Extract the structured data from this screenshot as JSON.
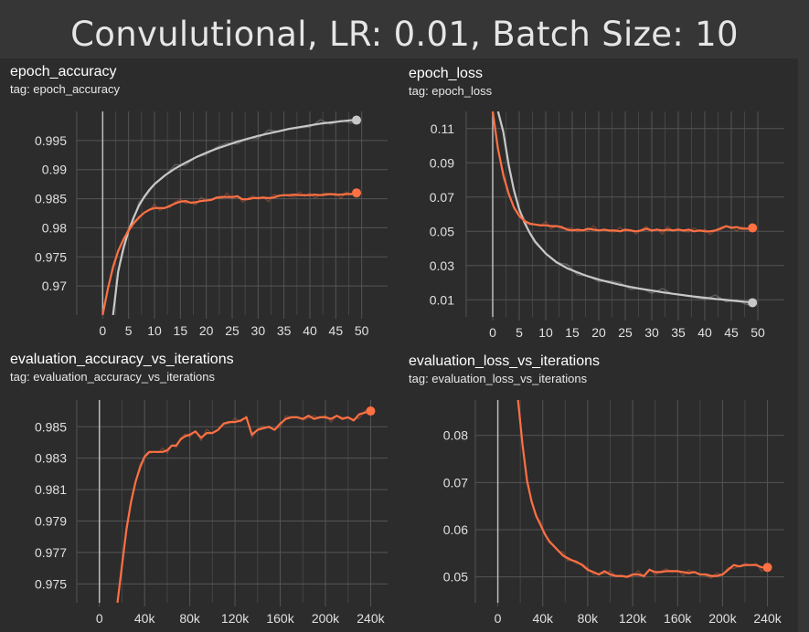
{
  "title": "Convulutional, LR: 0.01, Batch Size: 10",
  "colors": {
    "background": "#2c2c2c",
    "grid": "#555555",
    "zero_line": "#bdbdbd",
    "orange": "#ff7043",
    "gray": "#c8c8c8"
  },
  "panels": [
    {
      "name": "epoch_accuracy",
      "tag": "tag: epoch_accuracy"
    },
    {
      "name": "epoch_loss",
      "tag": "tag: epoch_loss"
    },
    {
      "name": "evaluation_accuracy_vs_iterations",
      "tag": "tag: evaluation_accuracy_vs_iterations"
    },
    {
      "name": "evaluation_loss_vs_iterations",
      "tag": "tag: evaluation_loss_vs_iterations"
    }
  ],
  "chart_data": [
    {
      "type": "line",
      "title": "epoch_accuracy",
      "xlim": [
        -5,
        55
      ],
      "ylim": [
        0.965,
        1.0
      ],
      "xticks": [
        0,
        5,
        10,
        15,
        20,
        25,
        30,
        35,
        40,
        45,
        50
      ],
      "xtick_labels": [
        "0",
        "5",
        "10",
        "15",
        "20",
        "25",
        "30",
        "35",
        "40",
        "45",
        "50"
      ],
      "yticks": [
        0.97,
        0.975,
        0.98,
        0.985,
        0.99,
        0.995
      ],
      "ytick_labels": [
        "0.97",
        "0.975",
        "0.98",
        "0.985",
        "0.99",
        "0.995"
      ],
      "grid": true,
      "series": [
        {
          "color": "#c8c8c8",
          "x": [
            2,
            3,
            4,
            5,
            6,
            7,
            8,
            9,
            10,
            12,
            14,
            16,
            18,
            20,
            22,
            24,
            26,
            28,
            30,
            32,
            34,
            36,
            38,
            40,
            42,
            44,
            46,
            48,
            49
          ],
          "y": [
            0.965,
            0.9725,
            0.9765,
            0.9795,
            0.9818,
            0.9838,
            0.9853,
            0.9865,
            0.9875,
            0.989,
            0.9902,
            0.9912,
            0.9921,
            0.9929,
            0.9936,
            0.9942,
            0.9948,
            0.9953,
            0.9958,
            0.9962,
            0.9966,
            0.997,
            0.9973,
            0.9976,
            0.9979,
            0.9981,
            0.9983,
            0.9985,
            0.9985
          ]
        },
        {
          "color": "#ff7043",
          "x": [
            0,
            1,
            2,
            3,
            4,
            5,
            6,
            7,
            8,
            9,
            10,
            11,
            12,
            13,
            14,
            15,
            16,
            17,
            18,
            19,
            20,
            21,
            22,
            23,
            24,
            25,
            26,
            27,
            28,
            29,
            30,
            31,
            32,
            33,
            34,
            35,
            36,
            37,
            38,
            39,
            40,
            41,
            42,
            43,
            44,
            45,
            46,
            47,
            48,
            49
          ],
          "y": [
            0.965,
            0.9695,
            0.9733,
            0.976,
            0.978,
            0.9795,
            0.9808,
            0.9818,
            0.9826,
            0.9831,
            0.9834,
            0.9834,
            0.9834,
            0.9838,
            0.9842,
            0.9845,
            0.9846,
            0.9843,
            0.9844,
            0.9846,
            0.9847,
            0.9848,
            0.9852,
            0.9853,
            0.9853,
            0.9853,
            0.9854,
            0.9849,
            0.9849,
            0.9851,
            0.9851,
            0.9852,
            0.9851,
            0.9852,
            0.9855,
            0.9856,
            0.9856,
            0.9857,
            0.9856,
            0.9856,
            0.9856,
            0.9857,
            0.9856,
            0.9857,
            0.9858,
            0.9857,
            0.9857,
            0.9858,
            0.9858,
            0.986
          ]
        }
      ]
    },
    {
      "type": "line",
      "title": "epoch_loss",
      "xlim": [
        -5,
        55
      ],
      "ylim": [
        0.0,
        0.12
      ],
      "xticks": [
        0,
        5,
        10,
        15,
        20,
        25,
        30,
        35,
        40,
        45,
        50
      ],
      "xtick_labels": [
        "0",
        "5",
        "10",
        "15",
        "20",
        "25",
        "30",
        "35",
        "40",
        "45",
        "50"
      ],
      "yticks": [
        0.01,
        0.03,
        0.05,
        0.07,
        0.09,
        0.11
      ],
      "ytick_labels": [
        "0.01",
        "0.03",
        "0.05",
        "0.07",
        "0.09",
        "0.11"
      ],
      "grid": true,
      "series": [
        {
          "color": "#c8c8c8",
          "x": [
            1,
            2,
            3,
            4,
            5,
            6,
            7,
            8,
            10,
            12,
            14,
            16,
            18,
            20,
            22,
            24,
            26,
            28,
            30,
            32,
            34,
            36,
            38,
            40,
            42,
            44,
            46,
            48,
            49
          ],
          "y": [
            0.12,
            0.108,
            0.089,
            0.074,
            0.063,
            0.055,
            0.049,
            0.044,
            0.037,
            0.032,
            0.0285,
            0.026,
            0.0237,
            0.0218,
            0.0202,
            0.0188,
            0.0175,
            0.0164,
            0.0154,
            0.0144,
            0.0135,
            0.0127,
            0.0119,
            0.0112,
            0.0105,
            0.0099,
            0.0093,
            0.0087,
            0.0083
          ]
        },
        {
          "color": "#ff7043",
          "x": [
            0,
            1,
            2,
            3,
            4,
            5,
            6,
            7,
            8,
            9,
            10,
            11,
            12,
            13,
            14,
            15,
            16,
            17,
            18,
            19,
            20,
            21,
            22,
            23,
            24,
            25,
            26,
            27,
            28,
            29,
            30,
            31,
            32,
            33,
            34,
            35,
            36,
            37,
            38,
            39,
            40,
            41,
            42,
            43,
            44,
            45,
            46,
            47,
            48,
            49
          ],
          "y": [
            0.12,
            0.098,
            0.083,
            0.072,
            0.064,
            0.059,
            0.056,
            0.0545,
            0.054,
            0.0535,
            0.0535,
            0.053,
            0.053,
            0.0525,
            0.051,
            0.0505,
            0.051,
            0.0505,
            0.0515,
            0.051,
            0.0505,
            0.051,
            0.0505,
            0.0505,
            0.05,
            0.051,
            0.0505,
            0.05,
            0.0505,
            0.0515,
            0.0505,
            0.051,
            0.0505,
            0.051,
            0.0505,
            0.051,
            0.0505,
            0.051,
            0.05,
            0.0505,
            0.05,
            0.05,
            0.0505,
            0.0515,
            0.053,
            0.052,
            0.0525,
            0.0515,
            0.0515,
            0.052
          ]
        }
      ]
    },
    {
      "type": "line",
      "title": "evaluation_accuracy_vs_iterations",
      "xlim": [
        -20000,
        255000
      ],
      "ylim": [
        0.9738,
        0.9867
      ],
      "xticks": [
        0,
        40000,
        80000,
        120000,
        160000,
        200000,
        240000
      ],
      "xtick_labels": [
        "0",
        "40k",
        "80k",
        "120k",
        "160k",
        "200k",
        "240k"
      ],
      "yticks": [
        0.975,
        0.977,
        0.979,
        0.981,
        0.983,
        0.985
      ],
      "ytick_labels": [
        "0.975",
        "0.977",
        "0.979",
        "0.981",
        "0.983",
        "0.985"
      ],
      "grid": true,
      "series": [
        {
          "color": "#ff7043",
          "x": [
            16000,
            20000,
            24000,
            28000,
            32000,
            36000,
            40000,
            44000,
            48000,
            52000,
            56000,
            60000,
            64000,
            68000,
            72000,
            76000,
            80000,
            85000,
            90000,
            95000,
            100000,
            105000,
            110000,
            115000,
            120000,
            125000,
            130000,
            135000,
            140000,
            145000,
            150000,
            155000,
            160000,
            165000,
            170000,
            175000,
            180000,
            185000,
            190000,
            195000,
            200000,
            205000,
            210000,
            215000,
            220000,
            225000,
            230000,
            235000,
            240000
          ],
          "y": [
            0.9738,
            0.9762,
            0.9785,
            0.9802,
            0.9815,
            0.9824,
            0.9831,
            0.9834,
            0.9834,
            0.9834,
            0.9834,
            0.9835,
            0.9838,
            0.9838,
            0.9842,
            0.9844,
            0.9845,
            0.9847,
            0.9843,
            0.9846,
            0.9846,
            0.9848,
            0.9852,
            0.9853,
            0.9853,
            0.9854,
            0.9856,
            0.9845,
            0.9848,
            0.9849,
            0.985,
            0.9848,
            0.9852,
            0.9855,
            0.9856,
            0.9856,
            0.9855,
            0.9857,
            0.9855,
            0.9856,
            0.9856,
            0.9855,
            0.9857,
            0.9855,
            0.9856,
            0.9854,
            0.9858,
            0.9859,
            0.986
          ]
        }
      ]
    },
    {
      "type": "line",
      "title": "evaluation_loss_vs_iterations",
      "xlim": [
        -20000,
        255000
      ],
      "ylim": [
        0.0445,
        0.0875
      ],
      "xticks": [
        0,
        40000,
        80000,
        120000,
        160000,
        200000,
        240000
      ],
      "xtick_labels": [
        "0",
        "40k",
        "80k",
        "120k",
        "160k",
        "200k",
        "240k"
      ],
      "yticks": [
        0.05,
        0.06,
        0.07,
        0.08
      ],
      "ytick_labels": [
        "0.05",
        "0.06",
        "0.07",
        "0.08"
      ],
      "grid": true,
      "series": [
        {
          "color": "#ff7043",
          "x": [
            18000,
            22000,
            26000,
            30000,
            34000,
            38000,
            42000,
            46000,
            50000,
            54000,
            58000,
            62000,
            66000,
            70000,
            75000,
            80000,
            85000,
            90000,
            95000,
            100000,
            105000,
            110000,
            115000,
            120000,
            125000,
            130000,
            135000,
            140000,
            145000,
            150000,
            155000,
            160000,
            165000,
            170000,
            175000,
            180000,
            185000,
            190000,
            195000,
            200000,
            205000,
            210000,
            215000,
            220000,
            225000,
            230000,
            235000,
            240000
          ],
          "y": [
            0.0875,
            0.078,
            0.0705,
            0.066,
            0.063,
            0.061,
            0.059,
            0.0575,
            0.0565,
            0.0555,
            0.0545,
            0.054,
            0.0535,
            0.0532,
            0.0525,
            0.0515,
            0.051,
            0.0505,
            0.0512,
            0.0505,
            0.0502,
            0.0502,
            0.05,
            0.0505,
            0.0505,
            0.0502,
            0.0515,
            0.051,
            0.051,
            0.0512,
            0.0512,
            0.0512,
            0.051,
            0.0508,
            0.051,
            0.0505,
            0.0505,
            0.0502,
            0.0502,
            0.0505,
            0.0515,
            0.0525,
            0.0522,
            0.0525,
            0.0525,
            0.0525,
            0.052,
            0.052
          ]
        }
      ]
    }
  ]
}
